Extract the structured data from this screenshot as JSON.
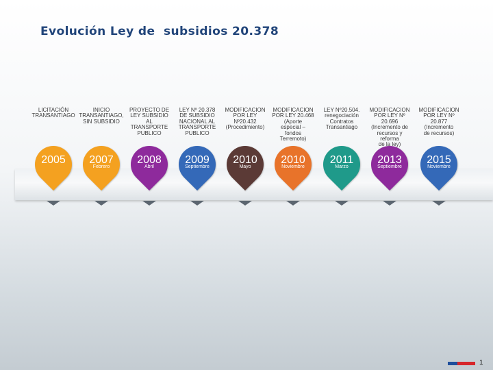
{
  "title": "Evolución Ley de  subsidios 20.378",
  "page_number": "1",
  "timeline": [
    {
      "year": "2005",
      "month": "",
      "color": "#f4a120",
      "desc": "LICITACIÓN\nTRANSANTIAGO"
    },
    {
      "year": "2007",
      "month": "Febrero",
      "color": "#f4a120",
      "desc": "INICIO\nTRANSANTIAGO,\nSIN SUBSIDIO"
    },
    {
      "year": "2008",
      "month": "Abril",
      "color": "#8e2a9c",
      "desc": "PROYECTO DE\nLEY SUBSIDIO\nAL\nTRANSPORTE\nPUBLICO"
    },
    {
      "year": "2009",
      "month": "Septiembre",
      "color": "#3469b8",
      "desc": "LEY Nº 20.378\nDE SUBSIDIO\nNACIONAL AL\nTRANSPORTE\nPUBLICO"
    },
    {
      "year": "2010",
      "month": "Mayo",
      "color": "#5b3a36",
      "desc": "MODIFICACION\nPOR LEY\nNº20.432\n(Procedimiento)"
    },
    {
      "year": "2010",
      "month": "Noviembre",
      "color": "#e8732a",
      "desc": "MODIFICACION\nPOR LEY 20.468\n(Aporte\nespecial –\nfondos\nTerremoto)"
    },
    {
      "year": "2011",
      "month": "Marzo",
      "color": "#1f9a8a",
      "desc": "LEY Nº20.504.\nrenegociación\nContratos\nTransantiago"
    },
    {
      "year": "2013",
      "month": "Septiembre",
      "color": "#8e2a9c",
      "desc": "MODIFICACION\nPOR LEY Nº\n20.696\n(Incremento de\nrecursos y\nreforma\nde la ley)"
    },
    {
      "year": "2015",
      "month": "Noviembre",
      "color": "#3469b8",
      "desc": "MODIFICACION\nPOR LEY Nº\n20.877\n(Incremento\nde recursos)"
    }
  ]
}
